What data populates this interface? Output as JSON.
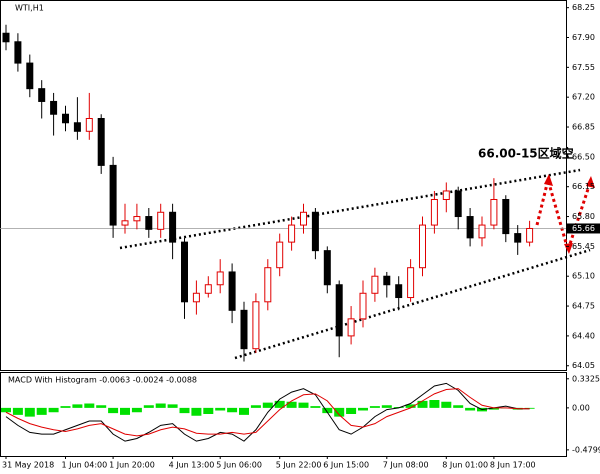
{
  "chart_data": {
    "type": "candlestick",
    "title": "WTI,H1",
    "categories": [
      "31 May 2018",
      null,
      null,
      null,
      null,
      "1 Jun 04:00",
      null,
      null,
      null,
      "1 Jun 20:00",
      null,
      null,
      null,
      null,
      "4 Jun 13:00",
      null,
      null,
      null,
      "5 Jun 06:00",
      null,
      null,
      null,
      null,
      "5 Jun 22:00",
      null,
      null,
      null,
      "6 Jun 15:00",
      null,
      null,
      null,
      null,
      "7 Jun 08:00",
      null,
      null,
      null,
      null,
      "8 Jun 01:00",
      null,
      null,
      null,
      "8 Jun 17:00",
      null,
      null,
      null
    ],
    "open": [
      67.95,
      67.85,
      67.6,
      67.3,
      67.15,
      67.0,
      66.9,
      66.8,
      66.95,
      66.4,
      65.7,
      65.75,
      65.8,
      65.65,
      65.85,
      65.5,
      64.8,
      64.9,
      65.0,
      65.15,
      64.7,
      64.25,
      64.8,
      65.2,
      65.5,
      65.7,
      65.85,
      65.4,
      65.0,
      64.4,
      64.6,
      64.9,
      65.1,
      65.0,
      64.85,
      65.2,
      65.7,
      66.0,
      66.1,
      65.8,
      65.55,
      65.7,
      66.0,
      65.6,
      65.5
    ],
    "high": [
      68.05,
      67.95,
      67.7,
      67.4,
      67.25,
      67.1,
      67.2,
      67.25,
      67.0,
      66.5,
      65.95,
      65.95,
      65.9,
      65.95,
      65.95,
      65.55,
      65.05,
      65.1,
      65.3,
      65.25,
      64.8,
      64.9,
      65.3,
      65.6,
      65.8,
      65.95,
      65.9,
      65.45,
      65.05,
      64.75,
      65.05,
      65.2,
      65.15,
      65.1,
      65.3,
      65.8,
      66.1,
      66.2,
      66.15,
      65.9,
      65.8,
      66.25,
      66.05,
      65.7,
      65.75
    ],
    "low": [
      67.75,
      67.5,
      67.2,
      66.95,
      66.75,
      66.8,
      66.7,
      66.7,
      66.3,
      65.55,
      65.6,
      65.65,
      65.55,
      65.55,
      65.3,
      64.6,
      64.65,
      64.85,
      64.9,
      64.55,
      64.1,
      64.2,
      64.7,
      65.1,
      65.4,
      65.6,
      65.3,
      64.9,
      64.15,
      64.3,
      64.5,
      64.8,
      64.85,
      64.7,
      64.8,
      65.1,
      65.6,
      65.85,
      65.65,
      65.45,
      65.45,
      65.65,
      65.5,
      65.35,
      65.45
    ],
    "close": [
      67.85,
      67.6,
      67.3,
      67.15,
      67.0,
      66.9,
      66.8,
      66.95,
      66.4,
      65.7,
      65.75,
      65.8,
      65.65,
      65.85,
      65.5,
      64.8,
      64.9,
      65.0,
      65.15,
      64.7,
      64.25,
      64.8,
      65.2,
      65.5,
      65.7,
      65.85,
      65.4,
      65.0,
      64.4,
      64.6,
      64.9,
      65.1,
      65.0,
      64.85,
      65.2,
      65.7,
      66.0,
      66.1,
      65.8,
      65.55,
      65.7,
      66.0,
      65.6,
      65.5,
      65.66
    ],
    "up_color": "#e00000",
    "down_color": "#000000",
    "ylim": [
      64.0,
      68.34
    ],
    "yticks": [
      {
        "value": 68.25,
        "label": "68.25"
      },
      {
        "value": 67.9,
        "label": "67.90"
      },
      {
        "value": 67.55,
        "label": "67.55"
      },
      {
        "value": 67.2,
        "label": "67.20"
      },
      {
        "value": 66.85,
        "label": "66.85"
      },
      {
        "value": 66.5,
        "label": "66.50"
      },
      {
        "value": 66.15,
        "label": "66.15"
      },
      {
        "value": 65.8,
        "label": "65.80"
      },
      {
        "value": 65.45,
        "label": "65.45"
      },
      {
        "value": 65.1,
        "label": "65.10"
      },
      {
        "value": 64.75,
        "label": "64.75"
      },
      {
        "value": 64.4,
        "label": "64.40"
      },
      {
        "value": 64.05,
        "label": "64.05"
      }
    ],
    "current_price": 65.66,
    "annotation": "66.00-15区域空",
    "macd": {
      "title": "MACD With Histogram -0.0063 -0.0024 -0.0088",
      "ylim": [
        -0.55,
        0.41
      ],
      "yticks": [
        0.3325,
        {
          "value": 0,
          "label": "0.00"
        },
        -0.4799
      ],
      "histogram_color": "#00e000",
      "histogram": [
        -0.05,
        -0.08,
        -0.1,
        -0.08,
        -0.05,
        0.02,
        0.04,
        0.05,
        0.03,
        -0.06,
        -0.08,
        -0.05,
        0.03,
        0.05,
        0.04,
        -0.06,
        -0.09,
        -0.07,
        -0.03,
        -0.05,
        -0.08,
        0.03,
        0.06,
        0.08,
        0.07,
        0.06,
        0.02,
        -0.06,
        -0.1,
        -0.07,
        -0.03,
        0.02,
        0.03,
        0.01,
        0.04,
        0.08,
        0.09,
        0.07,
        0.03,
        -0.03,
        -0.04,
        -0.02,
        0.0,
        -0.02,
        -0.01
      ],
      "series": [
        {
          "color": "#000000",
          "values": [
            -0.1,
            -0.2,
            -0.28,
            -0.3,
            -0.3,
            -0.25,
            -0.2,
            -0.15,
            -0.15,
            -0.3,
            -0.38,
            -0.35,
            -0.28,
            -0.2,
            -0.18,
            -0.3,
            -0.38,
            -0.35,
            -0.28,
            -0.3,
            -0.38,
            -0.25,
            -0.05,
            0.1,
            0.18,
            0.22,
            0.15,
            -0.05,
            -0.25,
            -0.3,
            -0.22,
            -0.1,
            -0.02,
            0.0,
            0.05,
            0.15,
            0.25,
            0.28,
            0.2,
            0.05,
            -0.02,
            0.0,
            0.02,
            -0.01,
            -0.01
          ]
        },
        {
          "color": "#e00000",
          "values": [
            -0.05,
            -0.12,
            -0.18,
            -0.22,
            -0.25,
            -0.27,
            -0.24,
            -0.2,
            -0.18,
            -0.24,
            -0.3,
            -0.32,
            -0.3,
            -0.25,
            -0.22,
            -0.24,
            -0.29,
            -0.3,
            -0.3,
            -0.28,
            -0.3,
            -0.28,
            -0.15,
            -0.02,
            0.08,
            0.15,
            0.16,
            0.08,
            -0.08,
            -0.2,
            -0.22,
            -0.18,
            -0.1,
            -0.05,
            0.0,
            0.08,
            0.16,
            0.21,
            0.22,
            0.12,
            0.03,
            0.0,
            0.0,
            -0.01,
            -0.01
          ]
        }
      ]
    }
  }
}
